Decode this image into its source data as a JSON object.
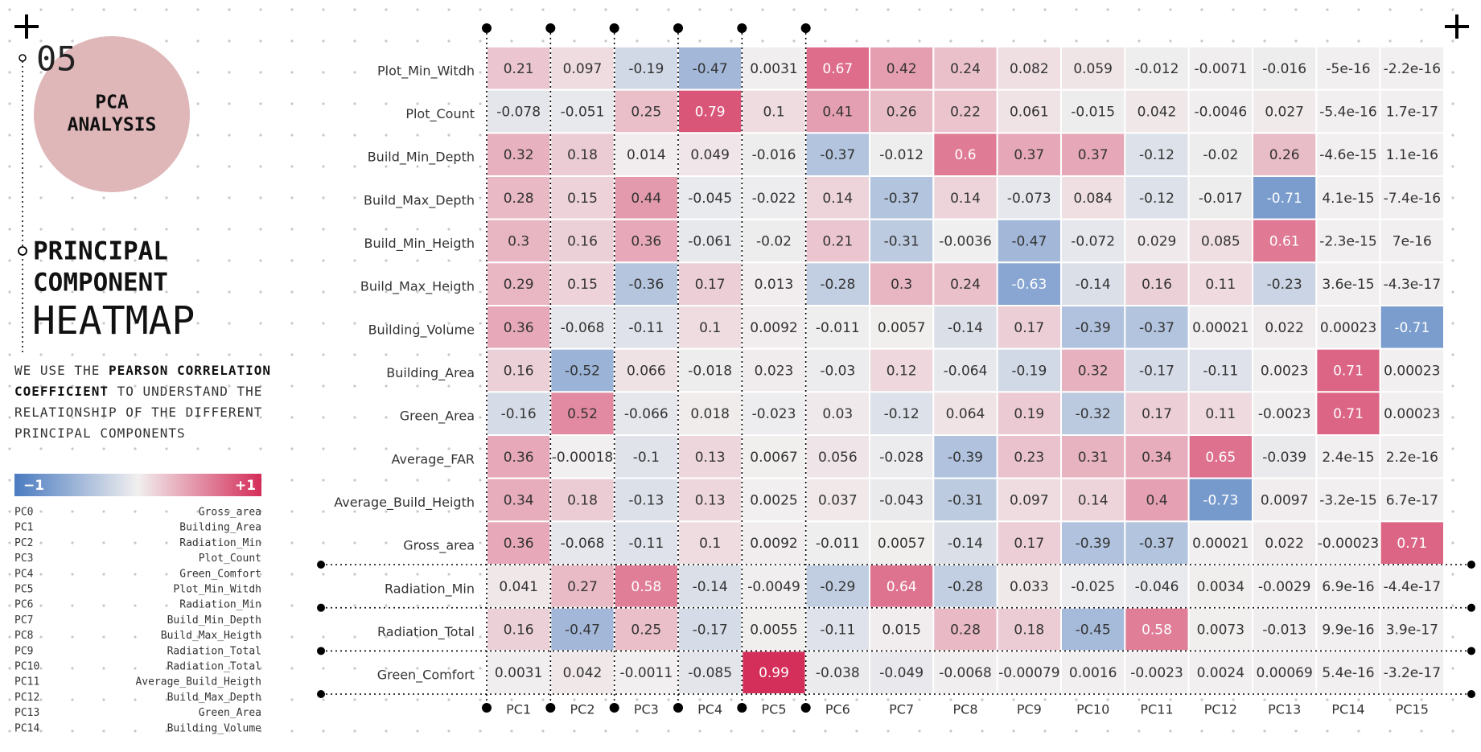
{
  "number": "05",
  "badge": [
    "PCA",
    "ANALYSIS"
  ],
  "heading": [
    "PRINCIPAL",
    "COMPONENT"
  ],
  "subheading": "HEATMAP",
  "description": [
    {
      "text": "WE USE THE ",
      "bold": false
    },
    {
      "text": "PEARSON CORRELATION COEFFICIENT",
      "bold": true
    },
    {
      "text": " TO UNDERSTAND THE RELATIONSHIP OF THE DIFFERENT PRINCIPAL COMPONENTS",
      "bold": false
    }
  ],
  "component_legend": [
    {
      "pc": "PC0",
      "name": "Gross_area"
    },
    {
      "pc": "PC1",
      "name": "Building_Area"
    },
    {
      "pc": "PC2",
      "name": "Radiation_Min"
    },
    {
      "pc": "PC3",
      "name": "Plot_Count"
    },
    {
      "pc": "PC4",
      "name": "Green_Comfort"
    },
    {
      "pc": "PC5",
      "name": "Plot_Min_Witdh"
    },
    {
      "pc": "PC6",
      "name": "Radiation_Min"
    },
    {
      "pc": "PC7",
      "name": "Build_Min_Depth"
    },
    {
      "pc": "PC8",
      "name": "Build_Max_Heigth"
    },
    {
      "pc": "PC9",
      "name": "Radiation_Total"
    },
    {
      "pc": "PC10",
      "name": "Radiation_Total"
    },
    {
      "pc": "PC11",
      "name": "Average_Build_Heigth"
    },
    {
      "pc": "PC12",
      "name": "Build_Max_Depth"
    },
    {
      "pc": "PC13",
      "name": "Green_Area"
    },
    {
      "pc": "PC14",
      "name": "Building_Volume"
    }
  ],
  "chart_data": {
    "type": "heatmap",
    "x": [
      "PC1",
      "PC2",
      "PC3",
      "PC4",
      "PC5",
      "PC6",
      "PC7",
      "PC8",
      "PC9",
      "PC10",
      "PC11",
      "PC12",
      "PC13",
      "PC14",
      "PC15"
    ],
    "y": [
      "Plot_Min_Witdh",
      "Plot_Count",
      "Build_Min_Depth",
      "Build_Max_Depth",
      "Build_Min_Heigth",
      "Build_Max_Heigth",
      "Building_Volume",
      "Building_Area",
      "Green_Area",
      "Average_FAR",
      "Average_Build_Heigth",
      "Gross_area",
      "Radiation_Min",
      "Radiation_Total",
      "Green_Comfort"
    ],
    "values": [
      [
        0.21,
        0.097,
        -0.19,
        -0.47,
        0.0031,
        0.67,
        0.42,
        0.24,
        0.082,
        0.059,
        -0.012,
        -0.0071,
        -0.016,
        -5e-16,
        -2.2e-16
      ],
      [
        -0.078,
        -0.051,
        0.25,
        0.79,
        0.1,
        0.41,
        0.26,
        0.22,
        0.061,
        -0.015,
        0.042,
        -0.0046,
        0.027,
        -5.4e-16,
        1.7e-17
      ],
      [
        0.32,
        0.18,
        0.014,
        0.049,
        -0.016,
        -0.37,
        -0.012,
        0.6,
        0.37,
        0.37,
        -0.12,
        -0.02,
        0.26,
        -4.6e-15,
        1.1e-16
      ],
      [
        0.28,
        0.15,
        0.44,
        -0.045,
        -0.022,
        0.14,
        -0.37,
        0.14,
        -0.073,
        0.084,
        -0.12,
        -0.017,
        -0.71,
        4.1e-15,
        -7.4e-16
      ],
      [
        0.3,
        0.16,
        0.36,
        -0.061,
        -0.02,
        0.21,
        -0.31,
        -0.0036,
        -0.47,
        -0.072,
        0.029,
        0.085,
        0.61,
        -2.3e-15,
        7e-16
      ],
      [
        0.29,
        0.15,
        -0.36,
        0.17,
        0.013,
        -0.28,
        0.3,
        0.24,
        -0.63,
        -0.14,
        0.16,
        0.11,
        -0.23,
        3.6e-15,
        -4.3e-17
      ],
      [
        0.36,
        -0.068,
        -0.11,
        0.1,
        0.0092,
        -0.011,
        0.0057,
        -0.14,
        0.17,
        -0.39,
        -0.37,
        0.00021,
        0.022,
        0.00023,
        -0.71
      ],
      [
        0.16,
        -0.52,
        0.066,
        -0.018,
        0.023,
        -0.03,
        0.12,
        -0.064,
        -0.19,
        0.32,
        -0.17,
        -0.11,
        0.0023,
        0.71,
        0.00023
      ],
      [
        -0.16,
        0.52,
        -0.066,
        0.018,
        -0.023,
        0.03,
        -0.12,
        0.064,
        0.19,
        -0.32,
        0.17,
        0.11,
        -0.0023,
        0.71,
        0.00023
      ],
      [
        0.36,
        -0.00018,
        -0.1,
        0.13,
        0.0067,
        0.056,
        -0.028,
        -0.39,
        0.23,
        0.31,
        0.34,
        0.65,
        -0.039,
        2.4e-15,
        2.2e-16
      ],
      [
        0.34,
        0.18,
        -0.13,
        0.13,
        0.0025,
        0.037,
        -0.043,
        -0.31,
        0.097,
        0.14,
        0.4,
        -0.73,
        0.0097,
        -3.2e-15,
        6.7e-17
      ],
      [
        0.36,
        -0.068,
        -0.11,
        0.1,
        0.0092,
        -0.011,
        0.0057,
        -0.14,
        0.17,
        -0.39,
        -0.37,
        0.00021,
        0.022,
        -0.00023,
        0.71
      ],
      [
        0.041,
        0.27,
        0.58,
        -0.14,
        -0.0049,
        -0.29,
        0.64,
        -0.28,
        0.033,
        -0.025,
        -0.046,
        0.0034,
        -0.0029,
        6.9e-16,
        -4.4e-17
      ],
      [
        0.16,
        -0.47,
        0.25,
        -0.17,
        0.0055,
        -0.11,
        0.015,
        0.28,
        0.18,
        -0.45,
        0.58,
        0.0073,
        -0.013,
        9.9e-16,
        3.9e-17
      ],
      [
        0.0031,
        0.042,
        -0.0011,
        -0.085,
        0.99,
        -0.038,
        -0.049,
        -0.0068,
        -0.00079,
        0.0016,
        -0.0023,
        0.0024,
        0.00069,
        5.4e-16,
        -3.2e-17
      ]
    ],
    "colorbar": {
      "range": [
        -1,
        1
      ],
      "colors": [
        "#4a7bc0",
        "#f1efef",
        "#d42d59"
      ],
      "ticks": [
        {
          "value": -1,
          "label": "−1"
        },
        {
          "value": 1,
          "label": "+1"
        }
      ]
    }
  }
}
